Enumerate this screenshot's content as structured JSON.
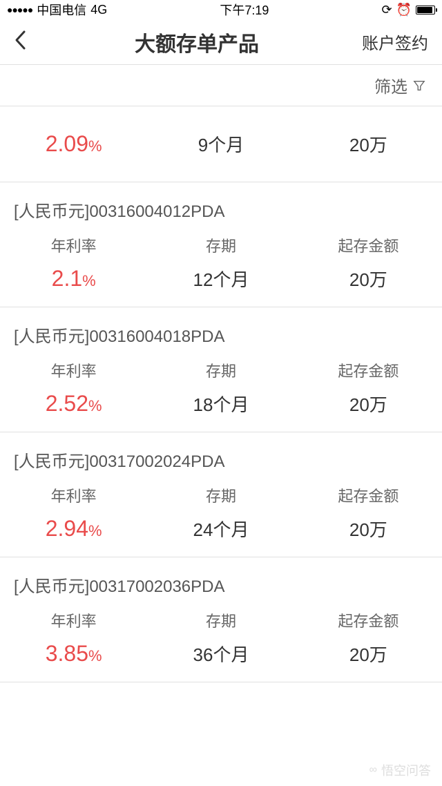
{
  "status": {
    "carrier": "中国电信",
    "network": "4G",
    "time": "下午7:19"
  },
  "header": {
    "title": "大额存单产品",
    "action": "账户签约"
  },
  "filter": {
    "label": "筛选"
  },
  "labels": {
    "rate": "年利率",
    "term": "存期",
    "amount": "起存金额"
  },
  "top": {
    "rate_num": "2.09",
    "rate_pct": "%",
    "term": "9个月",
    "amount": "20万"
  },
  "products": [
    {
      "name": "[人民币元]00316004012PDA",
      "rate_num": "2.1",
      "rate_pct": "%",
      "term": "12个月",
      "amount": "20万"
    },
    {
      "name": "[人民币元]00316004018PDA",
      "rate_num": "2.52",
      "rate_pct": "%",
      "term": "18个月",
      "amount": "20万"
    },
    {
      "name": "[人民币元]00317002024PDA",
      "rate_num": "2.94",
      "rate_pct": "%",
      "term": "24个月",
      "amount": "20万"
    },
    {
      "name": "[人民币元]00317002036PDA",
      "rate_num": "3.85",
      "rate_pct": "%",
      "term": "36个月",
      "amount": "20万"
    }
  ],
  "watermark": "悟空问答",
  "colors": {
    "accent": "#e94b4b",
    "text": "#333333",
    "text_light": "#666666",
    "border": "#e0e0e0"
  }
}
